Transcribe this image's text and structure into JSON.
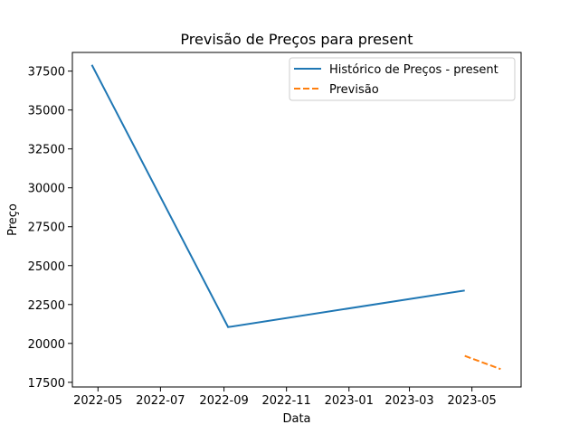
{
  "chart_data": {
    "type": "line",
    "title": "Previsão de Preços para present",
    "xlabel": "Data",
    "ylabel": "Preço",
    "x_axis_type": "date",
    "xlim": [
      "2022-04-06",
      "2023-06-18"
    ],
    "ylim": [
      17200,
      38700
    ],
    "x_ticks": [
      "2022-05-01",
      "2022-07-01",
      "2022-09-01",
      "2022-11-01",
      "2023-01-01",
      "2023-03-01",
      "2023-05-01"
    ],
    "x_tick_labels": [
      "2022-05",
      "2022-07",
      "2022-09",
      "2022-11",
      "2023-01",
      "2023-03",
      "2023-05"
    ],
    "y_ticks": [
      17500,
      20000,
      22500,
      25000,
      27500,
      30000,
      32500,
      35000,
      37500
    ],
    "y_tick_labels": [
      "17500",
      "20000",
      "22500",
      "25000",
      "27500",
      "30000",
      "32500",
      "35000",
      "37500"
    ],
    "grid": false,
    "legend_position": "top-right",
    "series": [
      {
        "name": "Histórico de Preços - present",
        "color": "#1f77b4",
        "style": "solid",
        "x": [
          "2022-04-25",
          "2022-09-05",
          "2023-04-24"
        ],
        "y": [
          37900,
          21050,
          23400
        ]
      },
      {
        "name": "Previsão",
        "color": "#ff7f0e",
        "style": "dashed",
        "x": [
          "2023-04-24",
          "2023-05-29"
        ],
        "y": [
          19200,
          18350
        ]
      }
    ]
  }
}
